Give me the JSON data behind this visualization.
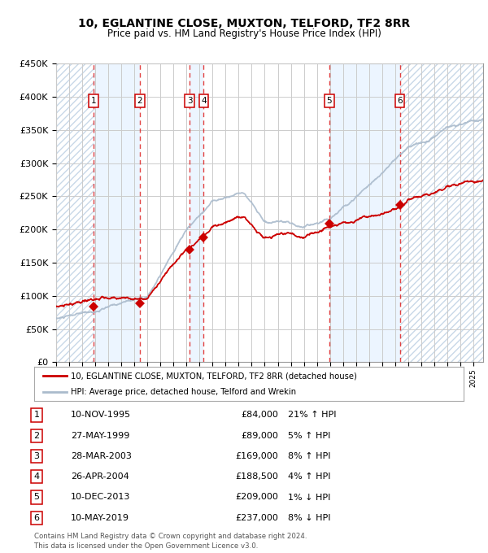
{
  "title": "10, EGLANTINE CLOSE, MUXTON, TELFORD, TF2 8RR",
  "subtitle": "Price paid vs. HM Land Registry's House Price Index (HPI)",
  "ylim": [
    0,
    450000
  ],
  "yticks": [
    0,
    50000,
    100000,
    150000,
    200000,
    250000,
    300000,
    350000,
    400000,
    450000
  ],
  "ytick_labels": [
    "£0",
    "£50K",
    "£100K",
    "£150K",
    "£200K",
    "£250K",
    "£300K",
    "£350K",
    "£400K",
    "£450K"
  ],
  "xlim_start": 1993.0,
  "xlim_end": 2025.75,
  "sale_dates_decimal": [
    1995.87,
    1999.4,
    2003.24,
    2004.32,
    2013.94,
    2019.36
  ],
  "sale_prices": [
    84000,
    89000,
    169000,
    188500,
    209000,
    237000
  ],
  "sale_labels": [
    "1",
    "2",
    "3",
    "4",
    "5",
    "6"
  ],
  "sale_info": [
    {
      "label": "1",
      "date": "10-NOV-1995",
      "price": "£84,000",
      "pct": "21%",
      "dir": "↑",
      "note": "HPI"
    },
    {
      "label": "2",
      "date": "27-MAY-1999",
      "price": "£89,000",
      "pct": "5%",
      "dir": "↑",
      "note": "HPI"
    },
    {
      "label": "3",
      "date": "28-MAR-2003",
      "price": "£169,000",
      "pct": "8%",
      "dir": "↑",
      "note": "HPI"
    },
    {
      "label": "4",
      "date": "26-APR-2004",
      "price": "£188,500",
      "pct": "4%",
      "dir": "↑",
      "note": "HPI"
    },
    {
      "label": "5",
      "date": "10-DEC-2013",
      "price": "£209,000",
      "pct": "1%",
      "dir": "↓",
      "note": "HPI"
    },
    {
      "label": "6",
      "date": "10-MAY-2019",
      "price": "£237,000",
      "pct": "8%",
      "dir": "↓",
      "note": "HPI"
    }
  ],
  "legend_line1": "10, EGLANTINE CLOSE, MUXTON, TELFORD, TF2 8RR (detached house)",
  "legend_line2": "HPI: Average price, detached house, Telford and Wrekin",
  "footer1": "Contains HM Land Registry data © Crown copyright and database right 2024.",
  "footer2": "This data is licensed under the Open Government Licence v3.0.",
  "red_color": "#cc0000",
  "blue_color": "#aabbcc",
  "bg_color": "#ddeeff",
  "hatch_color": "#bbccdd",
  "grid_color": "#cccccc",
  "dashed_vline_color": "#dd2222",
  "marker_color": "#cc0000"
}
